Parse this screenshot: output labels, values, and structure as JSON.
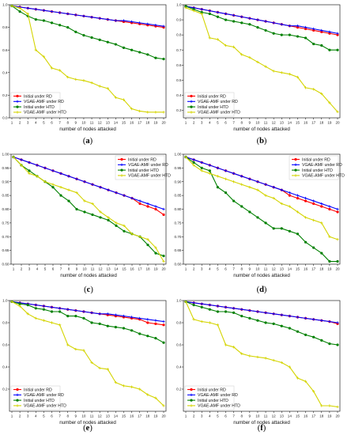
{
  "chart_data": [
    {
      "id": "a",
      "type": "line",
      "caption": "(a)",
      "xlabel": "number of nodes attacked",
      "xlim": [
        1,
        20
      ],
      "ylim": [
        0.0,
        1.0
      ],
      "yticks": [
        "0.0",
        "0.2",
        "0.4",
        "0.6",
        "0.8",
        "1.0"
      ],
      "legend": "bottom-left",
      "series": [
        {
          "name": "Initial under RD",
          "color": "#ff0000",
          "marker": "circle",
          "values": [
            0.99,
            0.98,
            0.97,
            0.96,
            0.95,
            0.94,
            0.93,
            0.92,
            0.91,
            0.9,
            0.89,
            0.88,
            0.87,
            0.86,
            0.85,
            0.84,
            0.83,
            0.82,
            0.81,
            0.8
          ]
        },
        {
          "name": "VGAE-AMF under RD",
          "color": "#0000ff",
          "marker": "plus",
          "values": [
            0.99,
            0.98,
            0.97,
            0.96,
            0.95,
            0.94,
            0.93,
            0.92,
            0.91,
            0.9,
            0.89,
            0.88,
            0.87,
            0.86,
            0.86,
            0.85,
            0.84,
            0.83,
            0.82,
            0.81
          ]
        },
        {
          "name": "Initial under HTD",
          "color": "#008000",
          "marker": "circle",
          "values": [
            0.99,
            0.94,
            0.9,
            0.87,
            0.86,
            0.84,
            0.82,
            0.8,
            0.76,
            0.73,
            0.71,
            0.69,
            0.67,
            0.65,
            0.62,
            0.6,
            0.58,
            0.56,
            0.53,
            0.52
          ]
        },
        {
          "name": "VGAE-AMF under HTD",
          "color": "#d4d400",
          "marker": "plus",
          "values": [
            0.99,
            0.97,
            0.92,
            0.6,
            0.54,
            0.44,
            0.42,
            0.36,
            0.34,
            0.33,
            0.31,
            0.28,
            0.26,
            0.18,
            0.16,
            0.08,
            0.06,
            0.05,
            0.05,
            0.05
          ]
        }
      ]
    },
    {
      "id": "b",
      "type": "line",
      "caption": "(b)",
      "xlabel": "number of nodes attacked",
      "xlim": [
        1,
        20
      ],
      "ylim": [
        0.25,
        1.0
      ],
      "yticks": [
        "0.3",
        "0.4",
        "0.5",
        "0.6",
        "0.7",
        "0.8",
        "0.9",
        "1.0"
      ],
      "legend": "bottom-left",
      "series": [
        {
          "name": "Initial under RD",
          "color": "#ff0000",
          "marker": "circle",
          "values": [
            0.99,
            0.98,
            0.97,
            0.96,
            0.95,
            0.94,
            0.93,
            0.92,
            0.91,
            0.9,
            0.89,
            0.88,
            0.87,
            0.86,
            0.85,
            0.84,
            0.83,
            0.82,
            0.81,
            0.8
          ]
        },
        {
          "name": "VGAE-AMF under RD",
          "color": "#0000ff",
          "marker": "plus",
          "values": [
            0.99,
            0.98,
            0.97,
            0.96,
            0.95,
            0.94,
            0.93,
            0.92,
            0.91,
            0.9,
            0.89,
            0.88,
            0.87,
            0.86,
            0.86,
            0.85,
            0.84,
            0.83,
            0.82,
            0.81
          ]
        },
        {
          "name": "Initial under HTD",
          "color": "#008000",
          "marker": "circle",
          "values": [
            0.99,
            0.97,
            0.95,
            0.94,
            0.92,
            0.9,
            0.89,
            0.88,
            0.87,
            0.85,
            0.83,
            0.81,
            0.8,
            0.8,
            0.79,
            0.78,
            0.74,
            0.73,
            0.7,
            0.7
          ]
        },
        {
          "name": "VGAE-AMF under HTD",
          "color": "#d4d400",
          "marker": "plus",
          "values": [
            0.98,
            0.96,
            0.94,
            0.78,
            0.77,
            0.73,
            0.72,
            0.67,
            0.65,
            0.62,
            0.59,
            0.56,
            0.55,
            0.54,
            0.52,
            0.45,
            0.44,
            0.41,
            0.35,
            0.29
          ]
        }
      ]
    },
    {
      "id": "c",
      "type": "line",
      "caption": "(c)",
      "xlabel": "number of nodes attacked",
      "xlim": [
        1,
        20
      ],
      "ylim": [
        0.6,
        1.0
      ],
      "yticks": [
        "0.60",
        "0.65",
        "0.70",
        "0.75",
        "0.80",
        "0.85",
        "0.90",
        "0.95",
        "1.00"
      ],
      "legend": "top-right",
      "series": [
        {
          "name": "Initial under RD",
          "color": "#ff0000",
          "marker": "circle",
          "values": [
            0.99,
            0.98,
            0.97,
            0.96,
            0.95,
            0.94,
            0.93,
            0.92,
            0.91,
            0.9,
            0.89,
            0.88,
            0.87,
            0.86,
            0.85,
            0.84,
            0.82,
            0.81,
            0.8,
            0.78
          ]
        },
        {
          "name": "VGAE-AMF under RD",
          "color": "#0000ff",
          "marker": "plus",
          "values": [
            0.99,
            0.98,
            0.97,
            0.96,
            0.95,
            0.94,
            0.93,
            0.92,
            0.91,
            0.9,
            0.89,
            0.88,
            0.87,
            0.86,
            0.85,
            0.84,
            0.83,
            0.82,
            0.81,
            0.8
          ]
        },
        {
          "name": "Initial under HTD",
          "color": "#008000",
          "marker": "circle",
          "values": [
            0.99,
            0.96,
            0.94,
            0.92,
            0.9,
            0.88,
            0.85,
            0.83,
            0.8,
            0.79,
            0.78,
            0.77,
            0.76,
            0.74,
            0.72,
            0.71,
            0.7,
            0.67,
            0.64,
            0.63
          ]
        },
        {
          "name": "VGAE-AMF under HTD",
          "color": "#d4d400",
          "marker": "plus",
          "values": [
            0.99,
            0.96,
            0.93,
            0.92,
            0.9,
            0.89,
            0.88,
            0.87,
            0.86,
            0.83,
            0.82,
            0.79,
            0.77,
            0.75,
            0.74,
            0.71,
            0.7,
            0.69,
            0.66,
            0.61
          ]
        }
      ]
    },
    {
      "id": "d",
      "type": "line",
      "caption": "(d)",
      "xlabel": "number of nodes attacked",
      "xlim": [
        1,
        20
      ],
      "ylim": [
        0.6,
        1.0
      ],
      "yticks": [
        "0.60",
        "0.65",
        "0.70",
        "0.75",
        "0.80",
        "0.85",
        "0.90",
        "0.95",
        "1.00"
      ],
      "legend": "top-right",
      "series": [
        {
          "name": "Initial under RD",
          "color": "#ff0000",
          "marker": "circle",
          "values": [
            0.99,
            0.98,
            0.97,
            0.96,
            0.95,
            0.94,
            0.93,
            0.92,
            0.91,
            0.9,
            0.89,
            0.88,
            0.87,
            0.85,
            0.84,
            0.83,
            0.82,
            0.81,
            0.8,
            0.79
          ]
        },
        {
          "name": "VGAE-AMF under RD",
          "color": "#0000ff",
          "marker": "plus",
          "values": [
            0.99,
            0.98,
            0.97,
            0.96,
            0.95,
            0.94,
            0.93,
            0.92,
            0.91,
            0.9,
            0.89,
            0.88,
            0.87,
            0.86,
            0.85,
            0.84,
            0.83,
            0.82,
            0.81,
            0.8
          ]
        },
        {
          "name": "Initial under HTD",
          "color": "#008000",
          "marker": "circle",
          "values": [
            0.99,
            0.97,
            0.95,
            0.94,
            0.88,
            0.86,
            0.83,
            0.81,
            0.79,
            0.77,
            0.75,
            0.73,
            0.73,
            0.72,
            0.71,
            0.68,
            0.66,
            0.64,
            0.61,
            0.61
          ]
        },
        {
          "name": "VGAE-AMF under HTD",
          "color": "#d4d400",
          "marker": "plus",
          "values": [
            0.99,
            0.96,
            0.94,
            0.93,
            0.92,
            0.91,
            0.9,
            0.89,
            0.88,
            0.87,
            0.85,
            0.84,
            0.82,
            0.81,
            0.79,
            0.77,
            0.76,
            0.75,
            0.7,
            0.69
          ]
        }
      ]
    },
    {
      "id": "e",
      "type": "line",
      "caption": "(e)",
      "xlabel": "number of nodes attacked",
      "xlim": [
        1,
        20
      ],
      "ylim": [
        0.0,
        1.0
      ],
      "yticks": [
        "0.2",
        "0.4",
        "0.6",
        "0.8",
        "1.0"
      ],
      "legend": "bottom-left",
      "series": [
        {
          "name": "Initial under RD",
          "color": "#ff0000",
          "marker": "circle",
          "values": [
            0.99,
            0.98,
            0.97,
            0.96,
            0.95,
            0.94,
            0.93,
            0.92,
            0.91,
            0.9,
            0.89,
            0.88,
            0.87,
            0.86,
            0.85,
            0.84,
            0.83,
            0.8,
            0.79,
            0.78
          ]
        },
        {
          "name": "VGAE-AMF under RD",
          "color": "#0000ff",
          "marker": "plus",
          "values": [
            0.99,
            0.98,
            0.97,
            0.96,
            0.95,
            0.94,
            0.93,
            0.92,
            0.91,
            0.9,
            0.89,
            0.88,
            0.88,
            0.87,
            0.86,
            0.85,
            0.84,
            0.83,
            0.82,
            0.81
          ]
        },
        {
          "name": "Initial under HTD",
          "color": "#008000",
          "marker": "circle",
          "values": [
            0.99,
            0.97,
            0.96,
            0.93,
            0.92,
            0.9,
            0.9,
            0.86,
            0.86,
            0.84,
            0.8,
            0.79,
            0.77,
            0.76,
            0.75,
            0.73,
            0.7,
            0.68,
            0.66,
            0.62
          ]
        },
        {
          "name": "VGAE-AMF under HTD",
          "color": "#d4d400",
          "marker": "plus",
          "values": [
            0.99,
            0.95,
            0.88,
            0.84,
            0.82,
            0.8,
            0.78,
            0.6,
            0.56,
            0.55,
            0.44,
            0.39,
            0.38,
            0.26,
            0.23,
            0.22,
            0.2,
            0.15,
            0.12,
            0.05
          ]
        }
      ]
    },
    {
      "id": "f",
      "type": "line",
      "caption": "(f)",
      "xlabel": "number of nodes attacked",
      "xlim": [
        1,
        20
      ],
      "ylim": [
        0.0,
        1.0
      ],
      "yticks": [
        "0.2",
        "0.4",
        "0.6",
        "0.8",
        "1.0"
      ],
      "legend": "bottom-left",
      "series": [
        {
          "name": "Initial under RD",
          "color": "#ff0000",
          "marker": "circle",
          "values": [
            0.99,
            0.98,
            0.97,
            0.96,
            0.95,
            0.94,
            0.93,
            0.92,
            0.91,
            0.9,
            0.89,
            0.88,
            0.87,
            0.86,
            0.85,
            0.84,
            0.83,
            0.82,
            0.81,
            0.79
          ]
        },
        {
          "name": "VGAE-AMF under RD",
          "color": "#0000ff",
          "marker": "plus",
          "values": [
            0.99,
            0.98,
            0.97,
            0.96,
            0.95,
            0.94,
            0.93,
            0.92,
            0.91,
            0.9,
            0.89,
            0.88,
            0.87,
            0.86,
            0.85,
            0.84,
            0.83,
            0.82,
            0.81,
            0.8
          ]
        },
        {
          "name": "Initial under HTD",
          "color": "#008000",
          "marker": "circle",
          "values": [
            0.99,
            0.96,
            0.94,
            0.92,
            0.9,
            0.9,
            0.89,
            0.86,
            0.84,
            0.82,
            0.8,
            0.79,
            0.77,
            0.75,
            0.72,
            0.69,
            0.67,
            0.64,
            0.61,
            0.6
          ]
        },
        {
          "name": "VGAE-AMF under HTD",
          "color": "#d4d400",
          "marker": "plus",
          "values": [
            0.99,
            0.83,
            0.81,
            0.8,
            0.78,
            0.6,
            0.58,
            0.52,
            0.5,
            0.49,
            0.48,
            0.46,
            0.44,
            0.4,
            0.3,
            0.27,
            0.18,
            0.05,
            0.05,
            0.04
          ]
        }
      ]
    }
  ]
}
